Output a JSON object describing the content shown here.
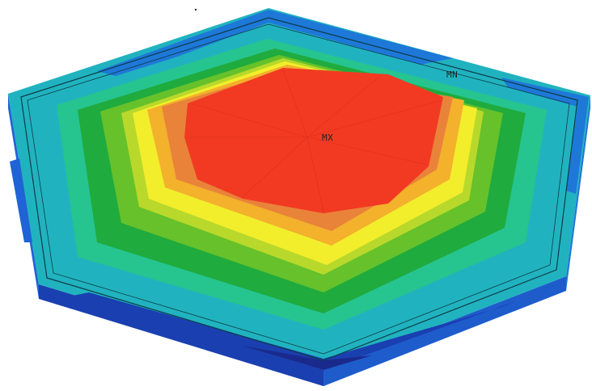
{
  "labels": {
    "max": "MX",
    "min": "MN"
  },
  "contour_colors": [
    "#1a2a8c",
    "#1f63d6",
    "#1e96e0",
    "#20b3bf",
    "#26c48f",
    "#1fab3e",
    "#66c12a",
    "#b8d92b",
    "#f2ee2c",
    "#f3b12c",
    "#e9833a",
    "#f23a22"
  ]
}
